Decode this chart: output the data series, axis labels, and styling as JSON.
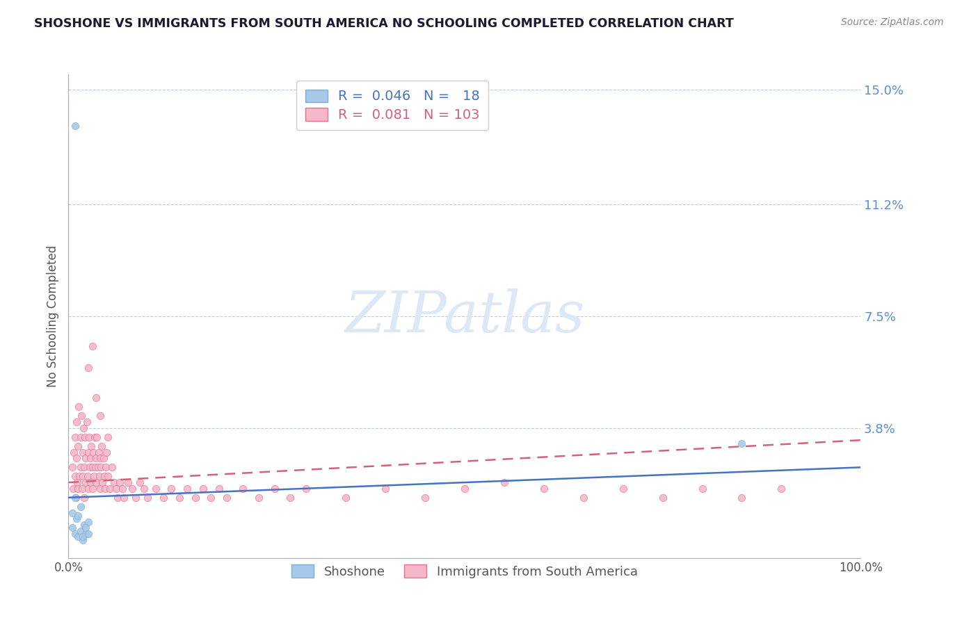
{
  "title": "SHOSHONE VS IMMIGRANTS FROM SOUTH AMERICA NO SCHOOLING COMPLETED CORRELATION CHART",
  "source": "Source: ZipAtlas.com",
  "ylabel": "No Schooling Completed",
  "xlim": [
    0,
    1.0
  ],
  "ylim": [
    -0.005,
    0.155
  ],
  "yticks": [
    0.038,
    0.075,
    0.112,
    0.15
  ],
  "ytick_labels": [
    "3.8%",
    "7.5%",
    "11.2%",
    "15.0%"
  ],
  "xticks": [
    0.0,
    1.0
  ],
  "xtick_labels": [
    "0.0%",
    "100.0%"
  ],
  "shoshone_dot_color": "#a8c8e8",
  "shoshone_edge_color": "#7aaed4",
  "sa_dot_color": "#f5b8c8",
  "sa_edge_color": "#e87090",
  "shoshone_R": 0.046,
  "shoshone_N": 18,
  "south_america_R": 0.081,
  "south_america_N": 103,
  "trend_blue_color": "#4472c4",
  "trend_pink_color": "#d4607a",
  "watermark": "ZIPatlas",
  "watermark_color": "#dce8f5",
  "legend_label_1": "Shoshone",
  "legend_label_2": "Immigrants from South America",
  "shoshone_x": [
    0.005,
    0.008,
    0.01,
    0.012,
    0.015,
    0.018,
    0.02,
    0.022,
    0.025,
    0.005,
    0.008,
    0.012,
    0.015,
    0.018,
    0.022,
    0.025,
    0.85,
    0.008
  ],
  "shoshone_y": [
    0.005,
    0.003,
    0.008,
    0.002,
    0.004,
    0.001,
    0.006,
    0.003,
    0.007,
    0.01,
    0.015,
    0.009,
    0.012,
    0.002,
    0.005,
    0.003,
    0.033,
    0.138
  ],
  "sa_x": [
    0.005,
    0.006,
    0.007,
    0.008,
    0.008,
    0.009,
    0.01,
    0.01,
    0.011,
    0.012,
    0.012,
    0.013,
    0.014,
    0.015,
    0.015,
    0.016,
    0.017,
    0.018,
    0.018,
    0.019,
    0.02,
    0.02,
    0.021,
    0.022,
    0.022,
    0.023,
    0.024,
    0.025,
    0.025,
    0.026,
    0.027,
    0.028,
    0.028,
    0.029,
    0.03,
    0.03,
    0.031,
    0.032,
    0.033,
    0.034,
    0.035,
    0.035,
    0.036,
    0.037,
    0.038,
    0.039,
    0.04,
    0.04,
    0.041,
    0.042,
    0.043,
    0.044,
    0.045,
    0.046,
    0.047,
    0.048,
    0.05,
    0.052,
    0.055,
    0.058,
    0.06,
    0.062,
    0.065,
    0.068,
    0.07,
    0.075,
    0.08,
    0.085,
    0.09,
    0.095,
    0.1,
    0.11,
    0.12,
    0.13,
    0.14,
    0.15,
    0.16,
    0.17,
    0.18,
    0.19,
    0.2,
    0.22,
    0.24,
    0.26,
    0.28,
    0.3,
    0.35,
    0.4,
    0.45,
    0.5,
    0.55,
    0.6,
    0.65,
    0.7,
    0.75,
    0.8,
    0.85,
    0.9,
    0.025,
    0.03,
    0.035,
    0.04,
    0.05
  ],
  "sa_y": [
    0.025,
    0.018,
    0.03,
    0.022,
    0.035,
    0.015,
    0.028,
    0.04,
    0.02,
    0.032,
    0.018,
    0.045,
    0.022,
    0.035,
    0.025,
    0.042,
    0.018,
    0.03,
    0.022,
    0.038,
    0.025,
    0.015,
    0.035,
    0.028,
    0.02,
    0.04,
    0.022,
    0.03,
    0.018,
    0.035,
    0.025,
    0.028,
    0.02,
    0.032,
    0.025,
    0.018,
    0.03,
    0.022,
    0.035,
    0.025,
    0.028,
    0.02,
    0.035,
    0.025,
    0.03,
    0.022,
    0.028,
    0.018,
    0.025,
    0.032,
    0.02,
    0.028,
    0.022,
    0.018,
    0.025,
    0.03,
    0.022,
    0.018,
    0.025,
    0.02,
    0.018,
    0.015,
    0.02,
    0.018,
    0.015,
    0.02,
    0.018,
    0.015,
    0.02,
    0.018,
    0.015,
    0.018,
    0.015,
    0.018,
    0.015,
    0.018,
    0.015,
    0.018,
    0.015,
    0.018,
    0.015,
    0.018,
    0.015,
    0.018,
    0.015,
    0.018,
    0.015,
    0.018,
    0.015,
    0.018,
    0.02,
    0.018,
    0.015,
    0.018,
    0.015,
    0.018,
    0.015,
    0.018,
    0.058,
    0.065,
    0.048,
    0.042,
    0.035
  ],
  "trend_blue_start": 0.015,
  "trend_blue_end": 0.025,
  "trend_pink_start": 0.02,
  "trend_pink_end": 0.034
}
